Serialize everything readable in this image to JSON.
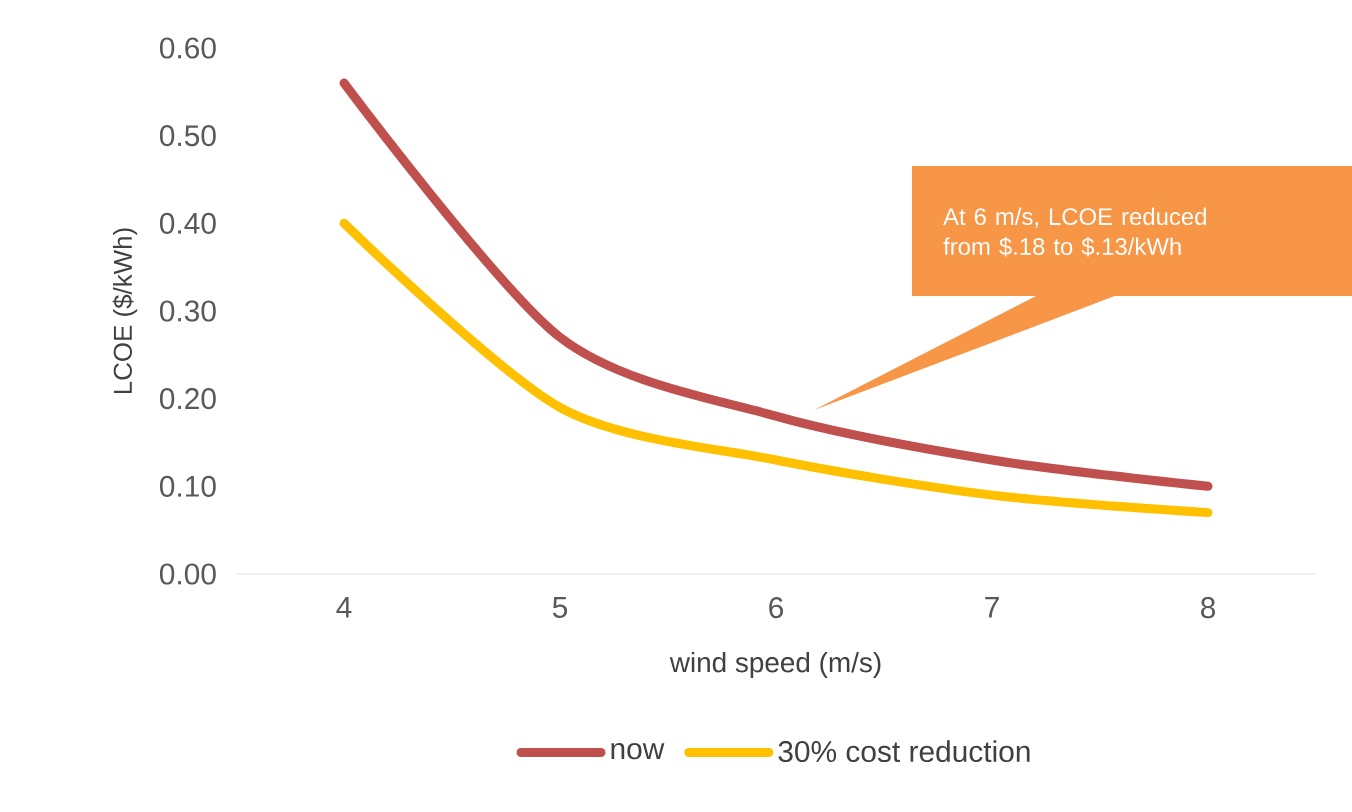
{
  "chart_data": {
    "type": "line",
    "xlabel": "wind speed (m/s)",
    "ylabel": "LCOE ($/kWh)",
    "x": [
      4,
      5,
      6,
      7,
      8
    ],
    "series": [
      {
        "name": "now",
        "color": "#c0504d",
        "values": [
          0.56,
          0.27,
          0.18,
          0.13,
          0.1
        ]
      },
      {
        "name": "30% cost reduction",
        "color": "#ffc000",
        "values": [
          0.4,
          0.19,
          0.13,
          0.09,
          0.07
        ]
      }
    ],
    "xlim": [
      3.5,
      8.5
    ],
    "xticks": [
      4,
      5,
      6,
      7,
      8
    ],
    "ylim": [
      0,
      0.6
    ],
    "yticks": [
      {
        "value": 0,
        "label": "0.00"
      },
      {
        "value": 0.1,
        "label": "0.10"
      },
      {
        "value": 0.2,
        "label": "0.20"
      },
      {
        "value": 0.3,
        "label": "0.30"
      },
      {
        "value": 0.4,
        "label": "0.40"
      },
      {
        "value": 0.5,
        "label": "0.50"
      },
      {
        "value": 0.6,
        "label": "0.60"
      }
    ],
    "grid": false,
    "legend": "bottom",
    "marker": "none",
    "line_style": "solid",
    "annotations": [
      "At 6 m/s, LCOE reduced from $.18 to $.13/kWh"
    ]
  }
}
